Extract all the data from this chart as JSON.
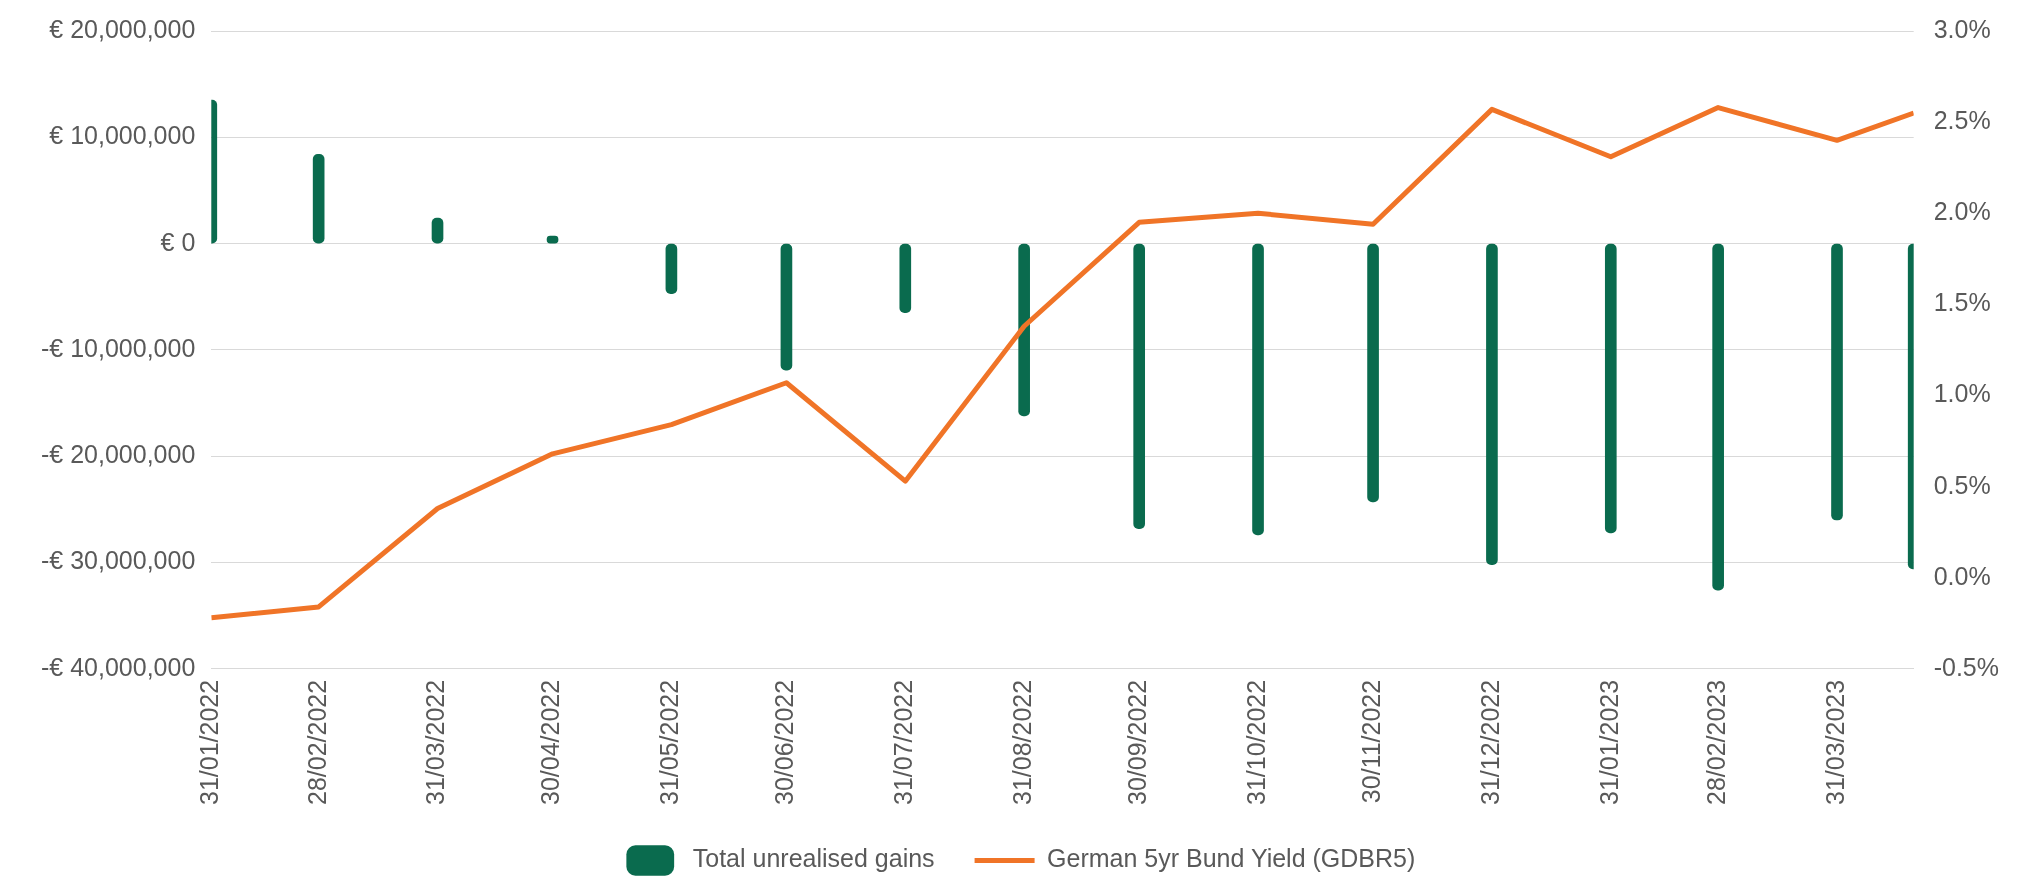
{
  "chart_data": {
    "type": "bar",
    "x": [
      "2022-01-31",
      "2022-02-28",
      "2022-03-31",
      "2022-04-30",
      "2022-05-31",
      "2022-06-30",
      "2022-07-31",
      "2022-08-31",
      "2022-09-30",
      "2022-10-31",
      "2022-11-30",
      "2022-12-31",
      "2023-01-31",
      "2023-02-28",
      "2023-03-31",
      "2023-04-20"
    ],
    "series": [
      {
        "name": "Total unrealised gains",
        "color": "#0a6b4e",
        "values": [
          13500000,
          8400000,
          2400000,
          700000,
          -4700000,
          -11900000,
          -6500000,
          -16200000,
          -26800000,
          -27400000,
          -24300000,
          -30200000,
          -27200000,
          -32600000,
          -26000000,
          -30600000
        ]
      },
      {
        "name": "German 5yr Bund Yield (GDBR5)",
        "type": "line",
        "axis": "y2",
        "color": "#f07427",
        "values": [
          -0.22,
          -0.16,
          0.38,
          0.68,
          0.84,
          1.07,
          0.53,
          1.38,
          1.95,
          2.0,
          1.94,
          2.57,
          2.31,
          2.58,
          2.4,
          2.55
        ]
      }
    ],
    "xlim": [
      "2022-01-31",
      "2023-04-20"
    ],
    "xticks": [
      {
        "value": "2022-01-31",
        "label": "31/01/2022"
      },
      {
        "value": "2022-02-28",
        "label": "28/02/2022"
      },
      {
        "value": "2022-03-31",
        "label": "31/03/2022"
      },
      {
        "value": "2022-04-30",
        "label": "30/04/2022"
      },
      {
        "value": "2022-05-31",
        "label": "31/05/2022"
      },
      {
        "value": "2022-06-30",
        "label": "30/06/2022"
      },
      {
        "value": "2022-07-31",
        "label": "31/07/2022"
      },
      {
        "value": "2022-08-31",
        "label": "31/08/2022"
      },
      {
        "value": "2022-09-30",
        "label": "30/09/2022"
      },
      {
        "value": "2022-10-31",
        "label": "31/10/2022"
      },
      {
        "value": "2022-11-30",
        "label": "30/11/2022"
      },
      {
        "value": "2022-12-31",
        "label": "31/12/2022"
      },
      {
        "value": "2023-01-31",
        "label": "31/01/2023"
      },
      {
        "value": "2023-02-28",
        "label": "28/02/2023"
      },
      {
        "value": "2023-03-31",
        "label": "31/03/2023"
      }
    ],
    "ylim": [
      -40000000,
      20000000
    ],
    "yticks": [
      {
        "value": -40000000,
        "label": "-€ 40,000,000"
      },
      {
        "value": -30000000,
        "label": "-€ 30,000,000"
      },
      {
        "value": -20000000,
        "label": "-€ 20,000,000"
      },
      {
        "value": -10000000,
        "label": "-€ 10,000,000"
      },
      {
        "value": 0,
        "label": "€ 0"
      },
      {
        "value": 10000000,
        "label": "€ 10,000,000"
      },
      {
        "value": 20000000,
        "label": "€ 20,000,000"
      }
    ],
    "y2lim": [
      -0.5,
      3.0
    ],
    "y2ticks": [
      {
        "value": -0.5,
        "label": "-0.5%"
      },
      {
        "value": 0,
        "label": "0.0%"
      },
      {
        "value": 0.5,
        "label": "0.5%"
      },
      {
        "value": 1.0,
        "label": "1.0%"
      },
      {
        "value": 1.5,
        "label": "1.5%"
      },
      {
        "value": 2.0,
        "label": "2.0%"
      },
      {
        "value": 2.5,
        "label": "2.5%"
      },
      {
        "value": 3.0,
        "label": "3.0%"
      }
    ],
    "grid": "y",
    "legend": "bottom"
  }
}
